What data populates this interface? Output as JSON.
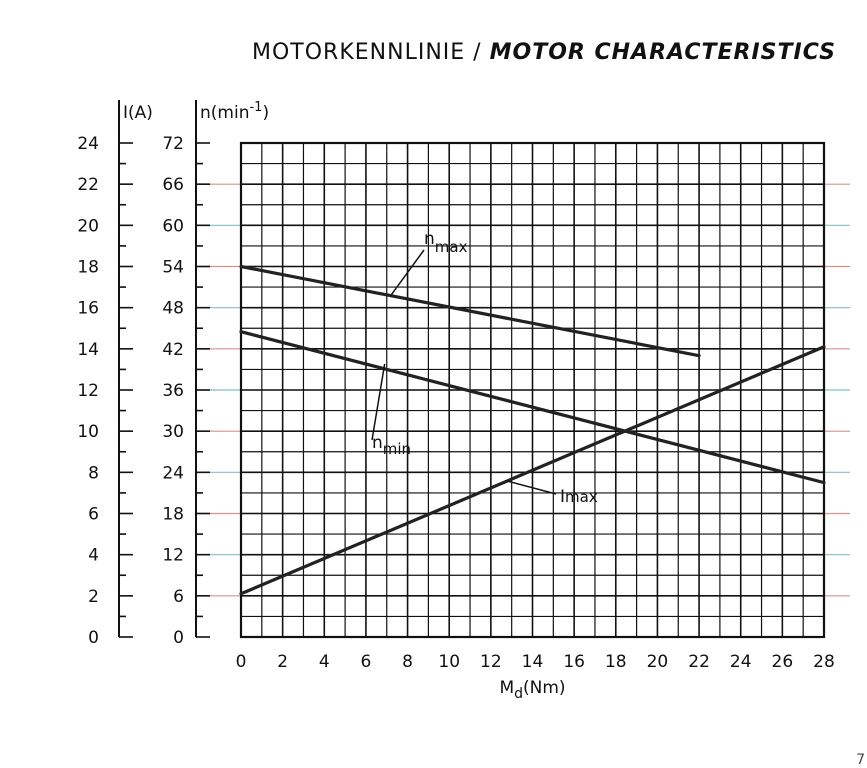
{
  "title": {
    "main": "MOTORKENNLINIE",
    "separator": "/",
    "sub": "MOTOR CHARACTERISTICS"
  },
  "page_mark": "7",
  "chart_data": {
    "type": "line",
    "title": "MOTORKENNLINIE / MOTOR CHARACTERISTICS",
    "xlabel": "Md(Nm)",
    "x_ticks": [
      0,
      2,
      4,
      6,
      8,
      10,
      12,
      14,
      16,
      18,
      20,
      22,
      24,
      26,
      28
    ],
    "xlim": [
      0,
      28
    ],
    "y_current": {
      "label": "I(A)",
      "ticks": [
        0,
        2,
        4,
        6,
        8,
        10,
        12,
        14,
        16,
        18,
        20,
        22,
        24
      ],
      "ylim": [
        0,
        24
      ]
    },
    "y_speed": {
      "label": "n(min-1)",
      "ticks": [
        0,
        6,
        12,
        18,
        24,
        30,
        36,
        42,
        48,
        54,
        60,
        66,
        72
      ],
      "ylim": [
        0,
        72
      ]
    },
    "grid": true,
    "series": [
      {
        "name": "nmax",
        "axis": "speed",
        "x": [
          0,
          22
        ],
        "y": [
          54,
          41
        ]
      },
      {
        "name": "nmin",
        "axis": "speed",
        "x": [
          0,
          28
        ],
        "y": [
          44.5,
          22.5
        ]
      },
      {
        "name": "Imax",
        "axis": "current",
        "x": [
          0,
          28
        ],
        "y": [
          2.1,
          14.1
        ]
      }
    ],
    "colors": {
      "line": "#222222",
      "grid": "#111111",
      "tint_teal": "#1f8a8a",
      "tint_red": "#b03a2e"
    }
  }
}
